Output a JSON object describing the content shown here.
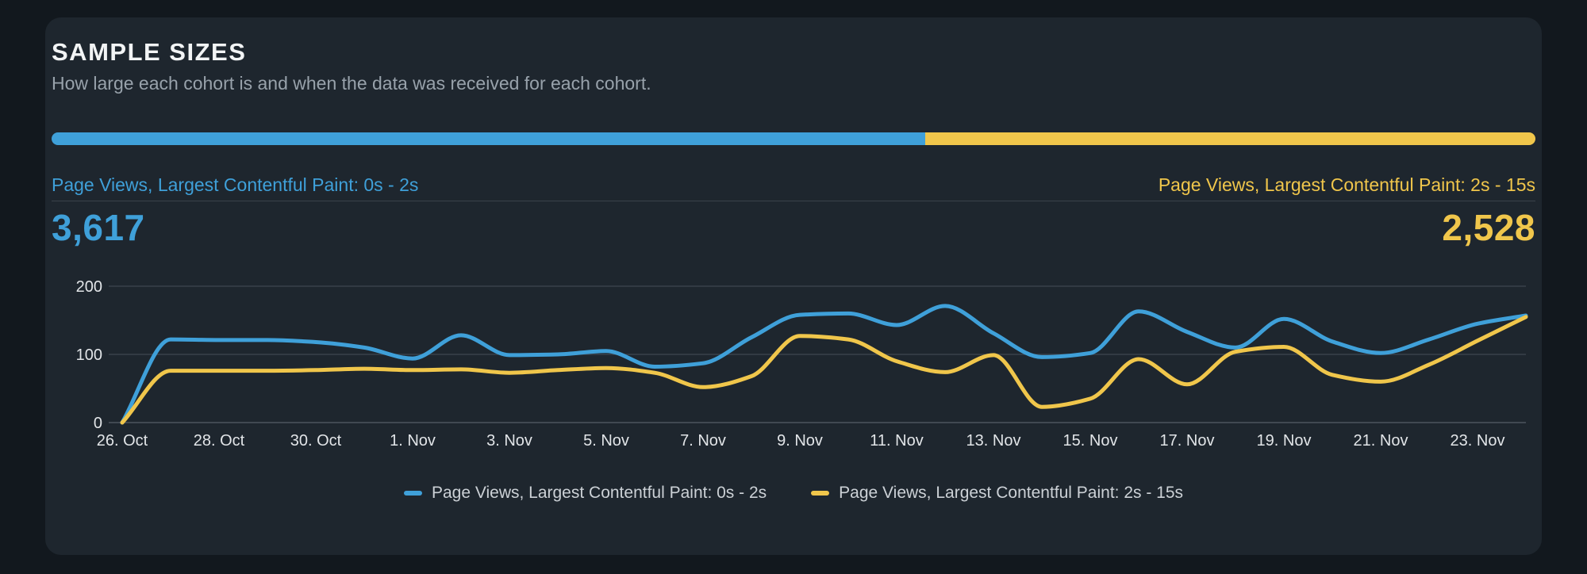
{
  "card": {
    "title": "SAMPLE SIZES",
    "subtitle": "How large each cohort is and when the data was received for each cohort."
  },
  "colors": {
    "page_bg": "#12181e",
    "card_bg": "#1e262e",
    "blue": "#3fa0d9",
    "yellow": "#f0c64b",
    "grid": "#39414a",
    "axis": "#4d555e",
    "tick_text": "#e2e5e8",
    "divider": "#3a424b"
  },
  "summary": {
    "left": {
      "label": "Page Views, Largest Contentful Paint: 0s - 2s",
      "value": "3,617",
      "color": "#3fa0d9",
      "share_pct": 58.9
    },
    "right": {
      "label": "Page Views, Largest Contentful Paint: 2s - 15s",
      "value": "2,528",
      "color": "#f0c64b",
      "share_pct": 41.1
    }
  },
  "chart_data": {
    "type": "line",
    "title": "Sample sizes over time",
    "xlabel": "",
    "ylabel": "",
    "ylim": [
      0,
      200
    ],
    "yticks": [
      0,
      100,
      200
    ],
    "grid": true,
    "legend_position": "bottom",
    "x": [
      "26. Oct",
      "27. Oct",
      "28. Oct",
      "29. Oct",
      "30. Oct",
      "31. Oct",
      "1. Nov",
      "2. Nov",
      "3. Nov",
      "4. Nov",
      "5. Nov",
      "6. Nov",
      "7. Nov",
      "8. Nov",
      "9. Nov",
      "10. Nov",
      "11. Nov",
      "12. Nov",
      "13. Nov",
      "14. Nov",
      "15. Nov",
      "16. Nov",
      "17. Nov",
      "18. Nov",
      "19. Nov",
      "20. Nov",
      "21. Nov",
      "22. Nov",
      "23. Nov",
      "24. Nov"
    ],
    "tick_labels": [
      "26. Oct",
      "28. Oct",
      "30. Oct",
      "1. Nov",
      "3. Nov",
      "5. Nov",
      "7. Nov",
      "9. Nov",
      "11. Nov",
      "13. Nov",
      "15. Nov",
      "17. Nov",
      "19. Nov",
      "21. Nov",
      "23. Nov"
    ],
    "series": [
      {
        "name": "Page Views, Largest Contentful Paint: 0s - 2s",
        "color": "#3fa0d9",
        "values": [
          0,
          122,
          121,
          121,
          118,
          110,
          94,
          128,
          99,
          100,
          105,
          82,
          87,
          125,
          158,
          160,
          143,
          171,
          131,
          96,
          102,
          163,
          133,
          110,
          152,
          119,
          102,
          122,
          145,
          157
        ]
      },
      {
        "name": "Page Views, Largest Contentful Paint: 2s - 15s",
        "color": "#f0c64b",
        "values": [
          0,
          76,
          76,
          76,
          77,
          79,
          77,
          78,
          73,
          77,
          80,
          73,
          52,
          68,
          127,
          122,
          90,
          74,
          99,
          23,
          35,
          93,
          56,
          104,
          111,
          70,
          60,
          85,
          120,
          155
        ]
      }
    ]
  }
}
